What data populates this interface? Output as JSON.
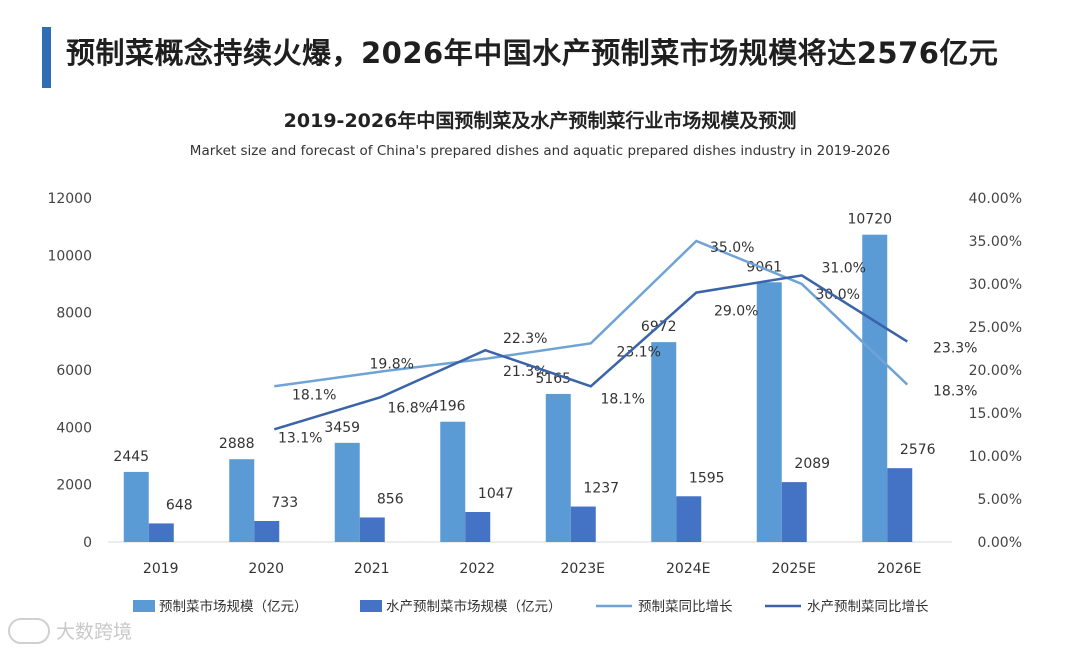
{
  "header": {
    "title": "预制菜概念持续火爆，2026年中国水产预制菜市场规模将达2576亿元"
  },
  "colors": {
    "accent_bar": "#2f6db5",
    "bar_total": "#5b9bd5",
    "bar_aquatic": "#4472c4",
    "line_total": "#6fa3d6",
    "line_aquatic": "#3a63a8"
  },
  "chart_data": {
    "type": "bar",
    "title": "2019-2026年中国预制菜及水产预制菜行业市场规模及预测",
    "subtitle": "Market size and forecast of China's prepared dishes and aquatic prepared dishes industry in 2019-2026",
    "categories": [
      "2019",
      "2020",
      "2021",
      "2022",
      "2023E",
      "2024E",
      "2025E",
      "2026E"
    ],
    "y_left": {
      "range": [
        0,
        12000
      ],
      "ticks": [
        "0",
        "2000",
        "4000",
        "6000",
        "8000",
        "10000",
        "12000"
      ]
    },
    "y_right": {
      "range": [
        0,
        40
      ],
      "ticks": [
        "0.00%",
        "5.00%",
        "10.00%",
        "15.00%",
        "20.00%",
        "25.00%",
        "30.00%",
        "35.00%",
        "40.00%"
      ]
    },
    "series": [
      {
        "name": "预制菜市场规模（亿元）",
        "kind": "bar",
        "axis": "left",
        "values": [
          2445,
          2888,
          3459,
          4196,
          5165,
          6972,
          9061,
          10720
        ],
        "labels": [
          "2445",
          "2888",
          "3459",
          "4196",
          "5165",
          "6972",
          "9061",
          "10720"
        ]
      },
      {
        "name": "水产预制菜市场规模（亿元）",
        "kind": "bar",
        "axis": "left",
        "values": [
          648,
          733,
          856,
          1047,
          1237,
          1595,
          2089,
          2576
        ],
        "labels": [
          "648",
          "733",
          "856",
          "1047",
          "1237",
          "1595",
          "2089",
          "2576"
        ]
      },
      {
        "name": "预制菜同比增长",
        "kind": "line",
        "axis": "right",
        "values": [
          null,
          18.1,
          19.8,
          21.3,
          23.1,
          35.0,
          30.0,
          18.3
        ],
        "labels": [
          null,
          "18.1%",
          "19.8%",
          "21.3%",
          "23.1%",
          "35.0%",
          "30.0%",
          "18.3%"
        ]
      },
      {
        "name": "水产预制菜同比增长",
        "kind": "line",
        "axis": "right",
        "values": [
          null,
          13.1,
          16.8,
          22.3,
          18.1,
          29.0,
          31.0,
          23.3
        ],
        "labels": [
          null,
          "13.1%",
          "16.8%",
          "22.3%",
          "18.1%",
          "29.0%",
          "31.0%",
          "23.3%"
        ]
      }
    ],
    "legend_position": "bottom"
  },
  "watermark": {
    "text": "大数跨境"
  }
}
